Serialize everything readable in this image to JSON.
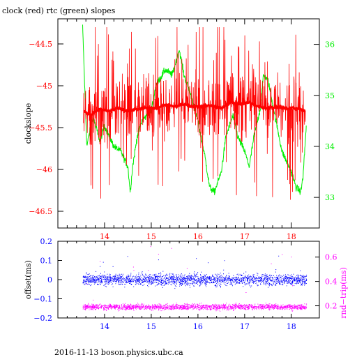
{
  "title": "clock (red) rtc (green) slopes",
  "footer": "2016-11-13  boson.physics.ubc.ca",
  "colors": {
    "red": "#ff0000",
    "green": "#00ee00",
    "blue": "#0000ff",
    "magenta": "#ff00ff",
    "axis": "#000000"
  },
  "chart_data": [
    {
      "type": "line",
      "title": "clock (red) rtc (green) slopes",
      "xlabel": "",
      "ylabel": "clockslope",
      "ylabel_right": "",
      "xlim": [
        13.0,
        18.6
      ],
      "ylim": [
        -46.7,
        -44.2
      ],
      "ylim_right": [
        32.4,
        36.5
      ],
      "x_ticks": [
        14,
        15,
        16,
        17,
        18
      ],
      "y_ticks": [
        -44.5,
        -45,
        -45.5,
        -46,
        -46.5
      ],
      "y_ticks_right": [
        33,
        34,
        35,
        36
      ],
      "series": [
        {
          "name": "clock",
          "color": "#ff0000",
          "axis": "left",
          "center": -45.27,
          "points": [
            [
              13.55,
              -45.3
            ],
            [
              13.7,
              -45.35
            ],
            [
              13.9,
              -45.28
            ],
            [
              14.1,
              -45.3
            ],
            [
              14.3,
              -45.27
            ],
            [
              14.5,
              -45.3
            ],
            [
              14.7,
              -45.28
            ],
            [
              14.9,
              -45.26
            ],
            [
              15.1,
              -45.27
            ],
            [
              15.3,
              -45.22
            ],
            [
              15.5,
              -45.25
            ],
            [
              15.7,
              -45.22
            ],
            [
              15.9,
              -45.25
            ],
            [
              16.1,
              -45.24
            ],
            [
              16.3,
              -45.24
            ],
            [
              16.5,
              -45.27
            ],
            [
              16.7,
              -45.2
            ],
            [
              16.9,
              -45.22
            ],
            [
              17.1,
              -45.2
            ],
            [
              17.3,
              -45.25
            ],
            [
              17.5,
              -45.27
            ],
            [
              17.7,
              -45.25
            ],
            [
              17.9,
              -45.27
            ],
            [
              18.1,
              -45.27
            ],
            [
              18.3,
              -45.3
            ]
          ]
        },
        {
          "name": "rtc",
          "color": "#00ee00",
          "axis": "right",
          "points": [
            [
              13.53,
              36.35
            ],
            [
              13.62,
              34.0
            ],
            [
              13.75,
              34.6
            ],
            [
              13.9,
              34.1
            ],
            [
              14.0,
              34.4
            ],
            [
              14.2,
              34.0
            ],
            [
              14.35,
              33.9
            ],
            [
              14.5,
              33.6
            ],
            [
              14.55,
              33.1
            ],
            [
              14.6,
              33.6
            ],
            [
              14.7,
              34.2
            ],
            [
              14.8,
              34.5
            ],
            [
              15.0,
              34.7
            ],
            [
              15.1,
              35.2
            ],
            [
              15.3,
              35.5
            ],
            [
              15.45,
              35.4
            ],
            [
              15.6,
              35.9
            ],
            [
              15.7,
              35.4
            ],
            [
              15.85,
              35.0
            ],
            [
              16.0,
              34.5
            ],
            [
              16.15,
              33.8
            ],
            [
              16.25,
              33.2
            ],
            [
              16.35,
              33.1
            ],
            [
              16.5,
              33.5
            ],
            [
              16.6,
              34.2
            ],
            [
              16.75,
              34.6
            ],
            [
              16.85,
              34.2
            ],
            [
              17.0,
              33.9
            ],
            [
              17.1,
              33.6
            ],
            [
              17.2,
              34.2
            ],
            [
              17.35,
              34.8
            ],
            [
              17.4,
              35.4
            ],
            [
              17.5,
              35.3
            ],
            [
              17.65,
              34.6
            ],
            [
              17.8,
              33.9
            ],
            [
              17.9,
              33.7
            ],
            [
              18.0,
              33.5
            ],
            [
              18.1,
              33.2
            ],
            [
              18.2,
              33.1
            ],
            [
              18.25,
              33.4
            ],
            [
              18.32,
              34.4
            ]
          ]
        }
      ]
    },
    {
      "type": "scatter",
      "xlabel": "",
      "ylabel": "offset(ms)",
      "ylabel_right": "rnd−trip(ms)",
      "xlim": [
        13.0,
        18.6
      ],
      "ylim": [
        -0.2,
        0.2
      ],
      "ylim_right": [
        0.1,
        0.73
      ],
      "x_ticks": [
        14,
        15,
        16,
        17,
        18
      ],
      "y_ticks": [
        0.2,
        0.1,
        0,
        -0.1,
        -0.2
      ],
      "y_ticks_right": [
        0.6,
        0.4,
        0.2
      ],
      "series": [
        {
          "name": "offset",
          "color": "#0000ff",
          "axis": "left",
          "center": 0.0,
          "spread": 0.05,
          "x_range": [
            13.53,
            18.32
          ]
        },
        {
          "name": "rnd-trip",
          "color": "#ff00ff",
          "axis": "right",
          "center": 0.19,
          "spread": 0.04,
          "x_range": [
            13.53,
            18.32
          ]
        }
      ]
    }
  ]
}
